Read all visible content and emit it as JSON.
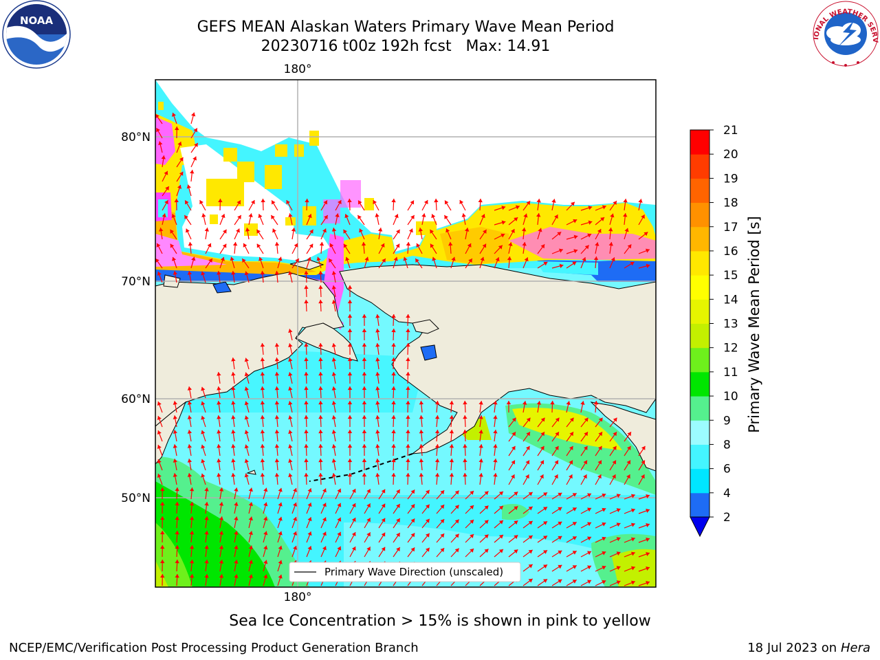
{
  "title": {
    "line1": "GEFS MEAN Alaskan Waters Primary Wave Mean Period",
    "line2": "20230716 t00z 192h fcst   Max: 14.91"
  },
  "map": {
    "meridian_label_top": "180°",
    "meridian_label_bottom": "180°",
    "lat_labels": [
      "80°N",
      "70°N",
      "60°N",
      "50°N"
    ],
    "legend_label": "Primary Wave Direction (unscaled)",
    "colors": {
      "land": "#efecdc",
      "ice_white": "#ffffff",
      "arrow": "#ff0000"
    }
  },
  "colorbar": {
    "title": "Primary Wave Mean Period [s]",
    "ticks": [
      "21",
      "20",
      "19",
      "18",
      "17",
      "16",
      "15",
      "14",
      "13",
      "12",
      "11",
      "10",
      "9",
      "8",
      "6",
      "4",
      "2"
    ],
    "levels": [
      2,
      4,
      6,
      8,
      9,
      10,
      11,
      12,
      13,
      14,
      15,
      16,
      17,
      18,
      19,
      20,
      21
    ],
    "colors": [
      "#1e6cf5",
      "#00e6ff",
      "#44f5ff",
      "#9cfcff",
      "#55f08e",
      "#00e600",
      "#6ef01c",
      "#c3f000",
      "#e6f500",
      "#ffff00",
      "#ffe800",
      "#ffb700",
      "#ff9100",
      "#ff6400",
      "#ff3c00",
      "#ff0000"
    ],
    "extend_color": "#0000ee"
  },
  "logos": {
    "noaa_text": "NOAA",
    "nws_text": "NATIONAL WEATHER SERVICE"
  },
  "caption": "Sea Ice Concentration > 15% is shown in pink to yellow",
  "footer": {
    "left": "NCEP/EMC/Verification Post Processing Product Generation Branch",
    "right_date": "18 Jul 2023 on ",
    "right_host": "Hera"
  }
}
